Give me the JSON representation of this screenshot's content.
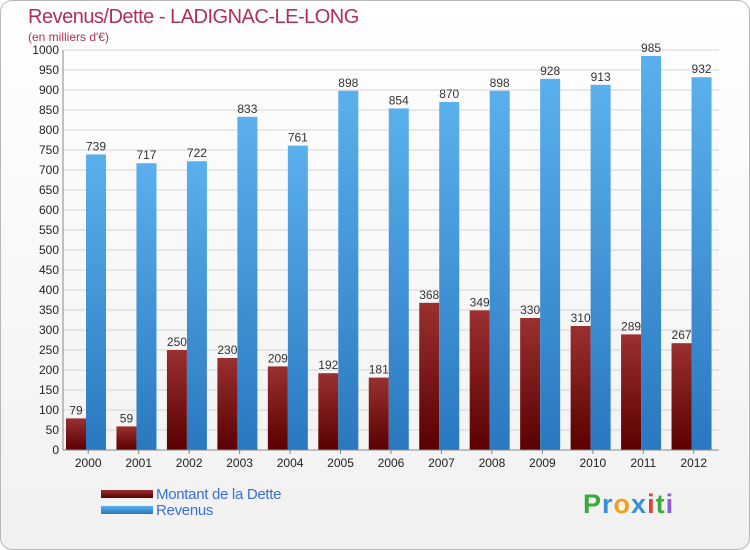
{
  "header": {
    "title": "Revenus/Dette - LADIGNAC-LE-LONG",
    "subtitle": "(en milliers d'€)"
  },
  "legend": [
    {
      "label": "Montant de la Dette",
      "color": "#7a1010"
    },
    {
      "label": "Revenus",
      "color": "#4a9fe0"
    }
  ],
  "logo": {
    "letters": [
      "P",
      "r",
      "o",
      "x",
      "i",
      "t",
      "i"
    ],
    "colors": [
      "#3aaa3a",
      "#3a8fd8",
      "#f0a020",
      "#3a8fd8",
      "#e04040",
      "#3aaa3a",
      "#8a5fd8"
    ]
  },
  "chart_data": {
    "type": "bar",
    "categories": [
      "2000",
      "2001",
      "2002",
      "2003",
      "2004",
      "2005",
      "2006",
      "2007",
      "2008",
      "2009",
      "2010",
      "2011",
      "2012"
    ],
    "series": [
      {
        "name": "Montant de la Dette",
        "values": [
          79,
          59,
          250,
          230,
          209,
          192,
          181,
          368,
          349,
          330,
          310,
          289,
          267
        ],
        "color": "#7a1010"
      },
      {
        "name": "Revenus",
        "values": [
          739,
          717,
          722,
          833,
          761,
          898,
          854,
          870,
          898,
          928,
          913,
          985,
          932
        ],
        "color": "#4a9fe0"
      }
    ],
    "ylim": [
      0,
      1000
    ],
    "ytick_step": 50,
    "grid": true
  }
}
